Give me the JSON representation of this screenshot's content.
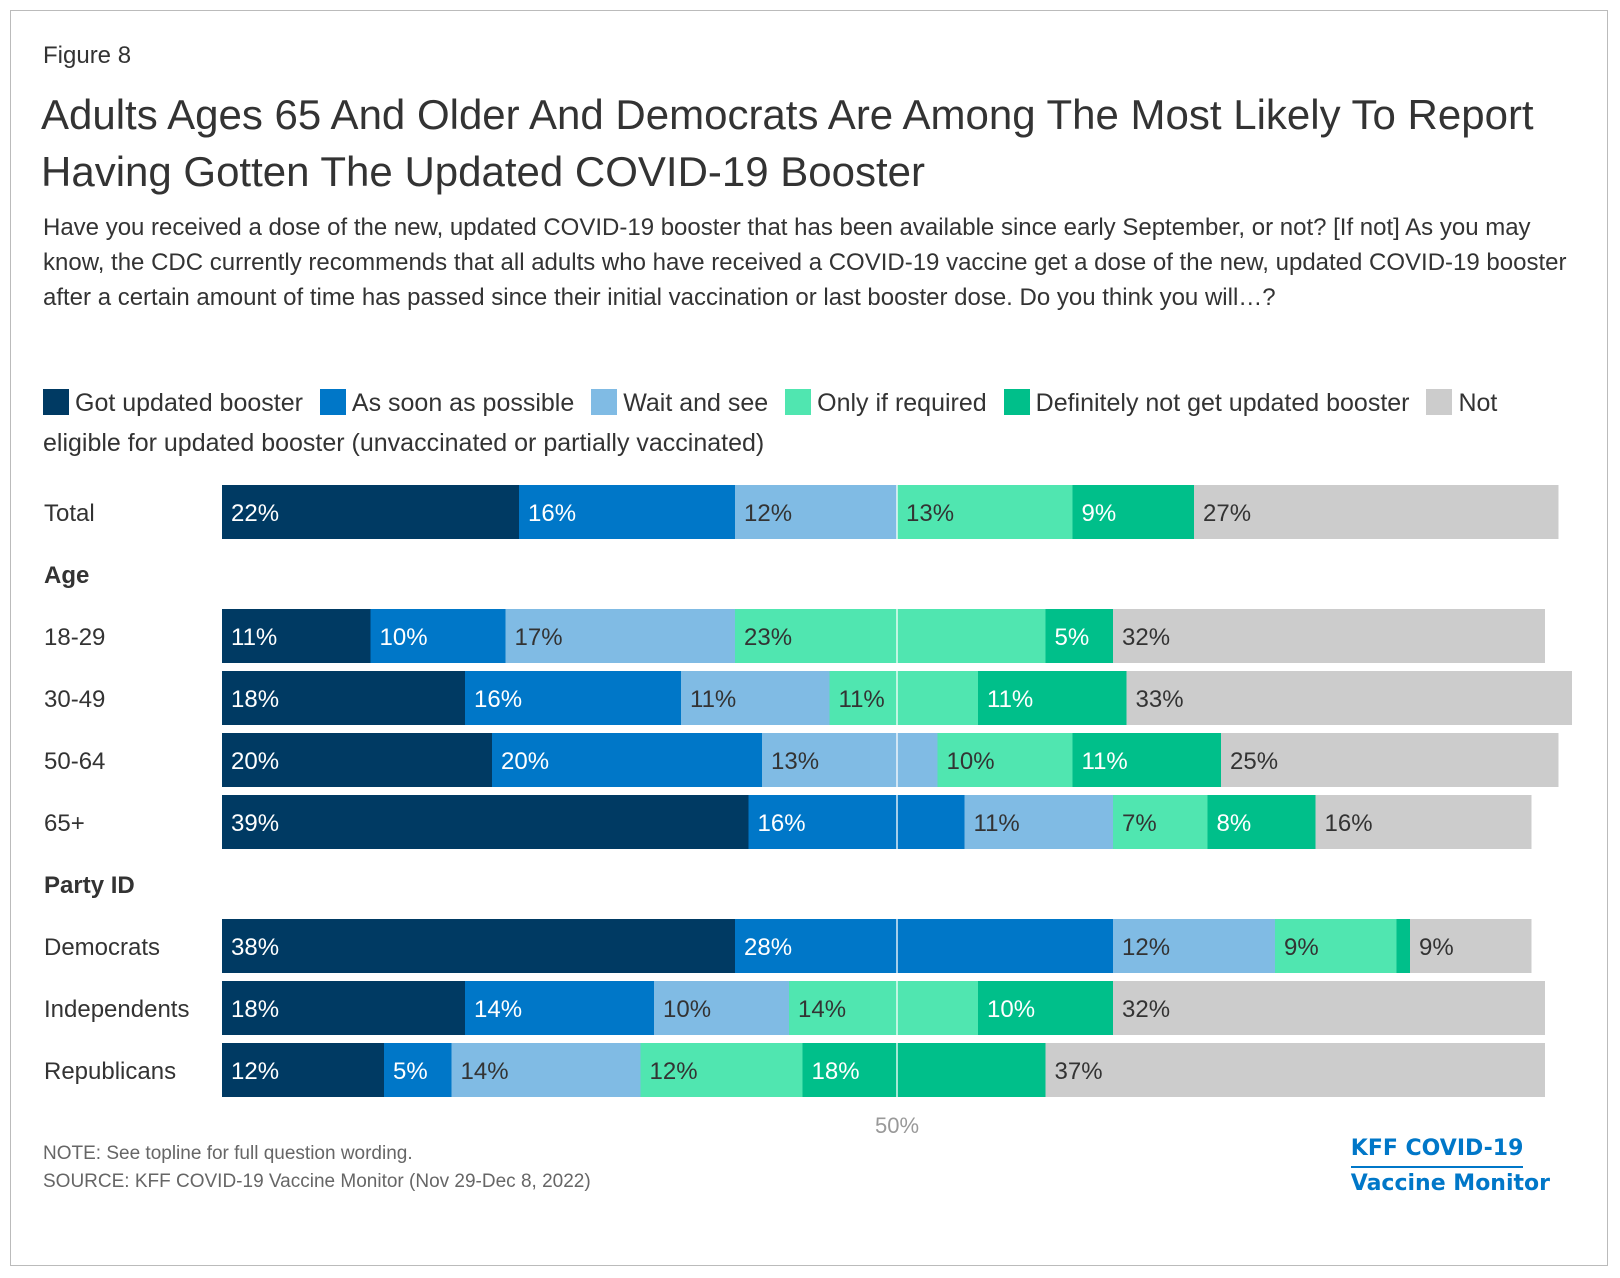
{
  "figure_label": "Figure 8",
  "title": "Adults Ages 65 And Older And Democrats Are Among The Most Likely To Report Having Gotten The Updated COVID-19 Booster",
  "subtitle": "Have you received a dose of the new, updated COVID-19 booster that has been available since early September, or not? [If not] As you may know, the CDC currently recommends that all adults who have received a COVID-19 vaccine get a dose of the new, updated COVID-19 booster after a certain amount of time has passed since their initial vaccination or last booster dose. Do you think you will…?",
  "legend": [
    {
      "label": "Got updated booster",
      "color": "#003a63"
    },
    {
      "label": "As soon as possible",
      "color": "#0077c8"
    },
    {
      "label": "Wait and see",
      "color": "#80bbe4"
    },
    {
      "label": "Only if required",
      "color": "#50e6b0"
    },
    {
      "label": "Definitely not get updated booster",
      "color": "#00bf8a"
    },
    {
      "label": "Not eligible for updated booster (unvaccinated or partially vaccinated)",
      "color": "#cccccc"
    }
  ],
  "chart_data": {
    "type": "bar",
    "orientation": "horizontal",
    "stacked": true,
    "reference_line": {
      "value": 50,
      "label": "50%"
    },
    "groups": [
      {
        "heading": "",
        "rows": [
          {
            "label": "Total",
            "values": [
              22,
              16,
              12,
              13,
              9,
              27
            ]
          }
        ]
      },
      {
        "heading": "Age",
        "rows": [
          {
            "label": "18-29",
            "values": [
              11,
              10,
              17,
              23,
              5,
              32
            ]
          },
          {
            "label": "30-49",
            "values": [
              18,
              16,
              11,
              11,
              11,
              33
            ]
          },
          {
            "label": "50-64",
            "values": [
              20,
              20,
              13,
              10,
              11,
              25
            ]
          },
          {
            "label": "65+",
            "values": [
              39,
              16,
              11,
              7,
              8,
              16
            ]
          }
        ]
      },
      {
        "heading": "Party ID",
        "rows": [
          {
            "label": "Democrats",
            "values": [
              38,
              28,
              12,
              9,
              1,
              9
            ],
            "value_labels": [
              "38%",
              "28%",
              "12%",
              "9%",
              "",
              "9%"
            ]
          },
          {
            "label": "Independents",
            "values": [
              18,
              14,
              10,
              14,
              10,
              32
            ]
          },
          {
            "label": "Republicans",
            "values": [
              12,
              5,
              14,
              12,
              18,
              37
            ]
          }
        ]
      }
    ]
  },
  "note": "NOTE: See topline for full question wording.",
  "source": "SOURCE: KFF COVID-19 Vaccine Monitor (Nov 29-Dec 8, 2022)",
  "logo": {
    "line1": "KFF COVID-19",
    "line2": "Vaccine Monitor"
  }
}
